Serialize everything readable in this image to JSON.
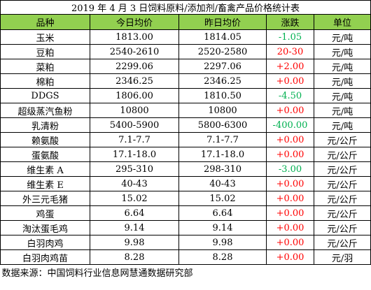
{
  "title": "2019 年 4 月 3 日饲料原料/添加剂/畜禽产品价格统计表",
  "table": {
    "header": [
      "品种",
      "今日均价",
      "昨日均价",
      "涨跌",
      "单位"
    ],
    "rows": [
      [
        "玉米",
        "1813.00",
        "1814.05",
        "-1.05",
        "元/吨"
      ],
      [
        "豆粕",
        "2540-2610",
        "2520-2580",
        "20-30",
        "元/吨"
      ],
      [
        "菜粕",
        "2299.06",
        "2297.06",
        "+2.00",
        "元/吨"
      ],
      [
        "棉粕",
        "2346.25",
        "2346.25",
        "+0.00",
        "元/吨"
      ],
      [
        "DDGS",
        "1806.00",
        "1810.50",
        "-4.50",
        "元/吨"
      ],
      [
        "超级蒸汽鱼粉",
        "10800",
        "10800",
        "+0.00",
        "元/吨"
      ],
      [
        "乳清粉",
        "5400-5900",
        "5800-6300",
        "-400.00",
        "元/吨"
      ],
      [
        "赖氨酸",
        "7.1-7.7",
        "7.1-7.7",
        "+0.00",
        "元/公斤"
      ],
      [
        "蛋氨酸",
        "17.1-18.0",
        "17.1-18.0",
        "+0.00",
        "元/公斤"
      ],
      [
        "维生素 A",
        "295-310",
        "298-310",
        "-3.00",
        "元/公斤"
      ],
      [
        "维生素 E",
        "40-43",
        "40-43",
        "+0.00",
        "元/公斤"
      ],
      [
        "外三元毛猪",
        "15.02",
        "15.02",
        "+0.00",
        "元/公斤"
      ],
      [
        "鸡蛋",
        "6.64",
        "6.64",
        "+0.00",
        "元/公斤"
      ],
      [
        "淘汰蛋毛鸡",
        "9.14",
        "9.14",
        "+0.00",
        "元/公斤"
      ],
      [
        "白羽肉鸡",
        "9.98",
        "9.98",
        "+0.00",
        "元/公斤"
      ],
      [
        "白羽肉鸡苗",
        "8.28",
        "8.28",
        "+0.00",
        "元/羽"
      ]
    ]
  },
  "source": "数据来源：中国饲料行业信息网慧通数据研究部"
}
